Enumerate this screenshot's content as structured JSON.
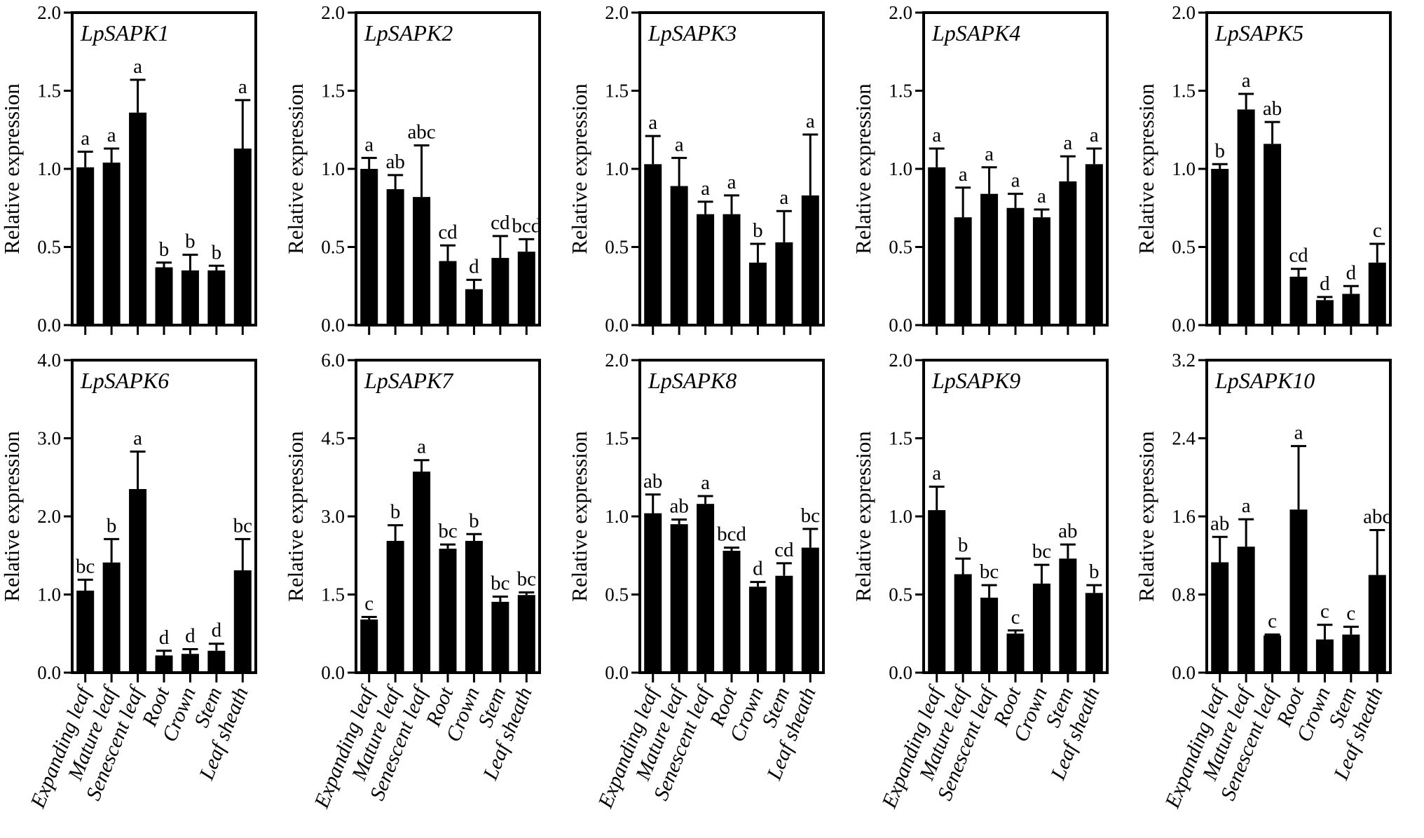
{
  "chart_data": [
    {
      "type": "bar",
      "gene": "LpSAPK1",
      "ylabel": "Relative expression",
      "ylim": [
        0,
        2.0
      ],
      "yticks": [
        "0.0",
        "0.5",
        "1.0",
        "1.5",
        "2.0"
      ],
      "categories": [
        "Expanding leaf",
        "Mature leaf",
        "Senescent leaf",
        "Root",
        "Crown",
        "Stem",
        "Leaf sheath"
      ],
      "values": [
        1.01,
        1.04,
        1.36,
        0.37,
        0.35,
        0.35,
        1.13
      ],
      "errors": [
        0.1,
        0.09,
        0.21,
        0.03,
        0.1,
        0.03,
        0.31
      ],
      "letters": [
        "a",
        "a",
        "a",
        "b",
        "b",
        "b",
        "a"
      ]
    },
    {
      "type": "bar",
      "gene": "LpSAPK2",
      "ylabel": "Relative expression",
      "ylim": [
        0,
        2.0
      ],
      "yticks": [
        "0.0",
        "0.5",
        "1.0",
        "1.5",
        "2.0"
      ],
      "categories": [
        "Expanding leaf",
        "Mature leaf",
        "Senescent leaf",
        "Root",
        "Crown",
        "Stem",
        "Leaf sheath"
      ],
      "values": [
        1.0,
        0.87,
        0.82,
        0.41,
        0.23,
        0.43,
        0.47
      ],
      "errors": [
        0.07,
        0.09,
        0.33,
        0.1,
        0.06,
        0.14,
        0.08
      ],
      "letters": [
        "a",
        "ab",
        "abc",
        "cd",
        "d",
        "cd",
        "bcd"
      ]
    },
    {
      "type": "bar",
      "gene": "LpSAPK3",
      "ylabel": "Relative expression",
      "ylim": [
        0,
        2.0
      ],
      "yticks": [
        "0.0",
        "0.5",
        "1.0",
        "1.5",
        "2.0"
      ],
      "categories": [
        "Expanding leaf",
        "Mature leaf",
        "Senescent leaf",
        "Root",
        "Crown",
        "Stem",
        "Leaf sheath"
      ],
      "values": [
        1.03,
        0.89,
        0.71,
        0.71,
        0.4,
        0.53,
        0.83
      ],
      "errors": [
        0.18,
        0.18,
        0.08,
        0.12,
        0.12,
        0.2,
        0.39
      ],
      "letters": [
        "a",
        "a",
        "a",
        "a",
        "b",
        "a",
        "a"
      ]
    },
    {
      "type": "bar",
      "gene": "LpSAPK4",
      "ylabel": "Relative expression",
      "ylim": [
        0,
        2.0
      ],
      "yticks": [
        "0.0",
        "0.5",
        "1.0",
        "1.5",
        "2.0"
      ],
      "categories": [
        "Expanding leaf",
        "Mature leaf",
        "Senescent leaf",
        "Root",
        "Crown",
        "Stem",
        "Leaf sheath"
      ],
      "values": [
        1.01,
        0.69,
        0.84,
        0.75,
        0.69,
        0.92,
        1.03
      ],
      "errors": [
        0.12,
        0.19,
        0.17,
        0.09,
        0.05,
        0.16,
        0.1
      ],
      "letters": [
        "a",
        "a",
        "a",
        "a",
        "a",
        "a",
        "a"
      ]
    },
    {
      "type": "bar",
      "gene": "LpSAPK5",
      "ylabel": "Relative expression",
      "ylim": [
        0,
        2.0
      ],
      "yticks": [
        "0.0",
        "0.5",
        "1.0",
        "1.5",
        "2.0"
      ],
      "categories": [
        "Expanding leaf",
        "Mature leaf",
        "Senescent leaf",
        "Root",
        "Crown",
        "Stem",
        "Leaf sheath"
      ],
      "values": [
        1.0,
        1.38,
        1.16,
        0.31,
        0.16,
        0.2,
        0.4
      ],
      "errors": [
        0.03,
        0.1,
        0.14,
        0.05,
        0.02,
        0.05,
        0.12
      ],
      "letters": [
        "b",
        "a",
        "ab",
        "cd",
        "d",
        "d",
        "c"
      ]
    },
    {
      "type": "bar",
      "gene": "LpSAPK6",
      "ylabel": "Relative expression",
      "ylim": [
        0,
        4.0
      ],
      "yticks": [
        "0.0",
        "1.0",
        "2.0",
        "3.0",
        "4.0"
      ],
      "categories": [
        "Expanding leaf",
        "Mature leaf",
        "Senescent leaf",
        "Root",
        "Crown",
        "Stem",
        "Leaf sheath"
      ],
      "values": [
        1.05,
        1.41,
        2.35,
        0.22,
        0.24,
        0.28,
        1.31
      ],
      "errors": [
        0.14,
        0.3,
        0.48,
        0.06,
        0.06,
        0.09,
        0.4
      ],
      "letters": [
        "bc",
        "b",
        "a",
        "d",
        "d",
        "d",
        "bc"
      ]
    },
    {
      "type": "bar",
      "gene": "LpSAPK7",
      "ylabel": "Relative expression",
      "ylim": [
        0,
        6.0
      ],
      "yticks": [
        "0.0",
        "1.5",
        "3.0",
        "4.5",
        "6.0"
      ],
      "categories": [
        "Expanding leaf",
        "Mature leaf",
        "Senescent leaf",
        "Root",
        "Crown",
        "Stem",
        "Leaf sheath"
      ],
      "values": [
        1.02,
        2.53,
        3.86,
        2.38,
        2.53,
        1.36,
        1.49
      ],
      "errors": [
        0.05,
        0.3,
        0.22,
        0.08,
        0.13,
        0.1,
        0.05
      ],
      "letters": [
        "c",
        "b",
        "a",
        "bc",
        "b",
        "bc",
        "bc"
      ]
    },
    {
      "type": "bar",
      "gene": "LpSAPK8",
      "ylabel": "Relative expression",
      "ylim": [
        0,
        2.0
      ],
      "yticks": [
        "0.0",
        "0.5",
        "1.0",
        "1.5",
        "2.0"
      ],
      "categories": [
        "Expanding leaf",
        "Mature leaf",
        "Senescent leaf",
        "Root",
        "Crown",
        "Stem",
        "Leaf sheath"
      ],
      "values": [
        1.02,
        0.95,
        1.08,
        0.78,
        0.55,
        0.62,
        0.8
      ],
      "errors": [
        0.12,
        0.03,
        0.05,
        0.02,
        0.03,
        0.08,
        0.12
      ],
      "letters": [
        "ab",
        "ab",
        "a",
        "bcd",
        "d",
        "cd",
        "bc"
      ]
    },
    {
      "type": "bar",
      "gene": "LpSAPK9",
      "ylabel": "Relative expression",
      "ylim": [
        0,
        2.0
      ],
      "yticks": [
        "0.0",
        "0.5",
        "1.0",
        "1.5",
        "2.0"
      ],
      "categories": [
        "Expanding leaf",
        "Mature leaf",
        "Senescent leaf",
        "Root",
        "Crown",
        "Stem",
        "Leaf sheath"
      ],
      "values": [
        1.04,
        0.63,
        0.48,
        0.25,
        0.57,
        0.73,
        0.51
      ],
      "errors": [
        0.15,
        0.1,
        0.08,
        0.02,
        0.12,
        0.09,
        0.05
      ],
      "letters": [
        "a",
        "b",
        "bc",
        "c",
        "bc",
        "ab",
        "b"
      ]
    },
    {
      "type": "bar",
      "gene": "LpSAPK10",
      "ylabel": "Relative expression",
      "ylim": [
        0,
        3.2
      ],
      "yticks": [
        "0.0",
        "0.8",
        "1.6",
        "2.4",
        "3.2"
      ],
      "categories": [
        "Expanding leaf",
        "Mature leaf",
        "Senescent leaf",
        "Root",
        "Crown",
        "Stem",
        "Leaf sheath"
      ],
      "values": [
        1.13,
        1.29,
        0.38,
        1.67,
        0.34,
        0.39,
        1.0
      ],
      "errors": [
        0.26,
        0.28,
        0.01,
        0.65,
        0.15,
        0.08,
        0.46
      ],
      "letters": [
        "ab",
        "a",
        "c",
        "a",
        "c",
        "c",
        "abc"
      ]
    }
  ]
}
